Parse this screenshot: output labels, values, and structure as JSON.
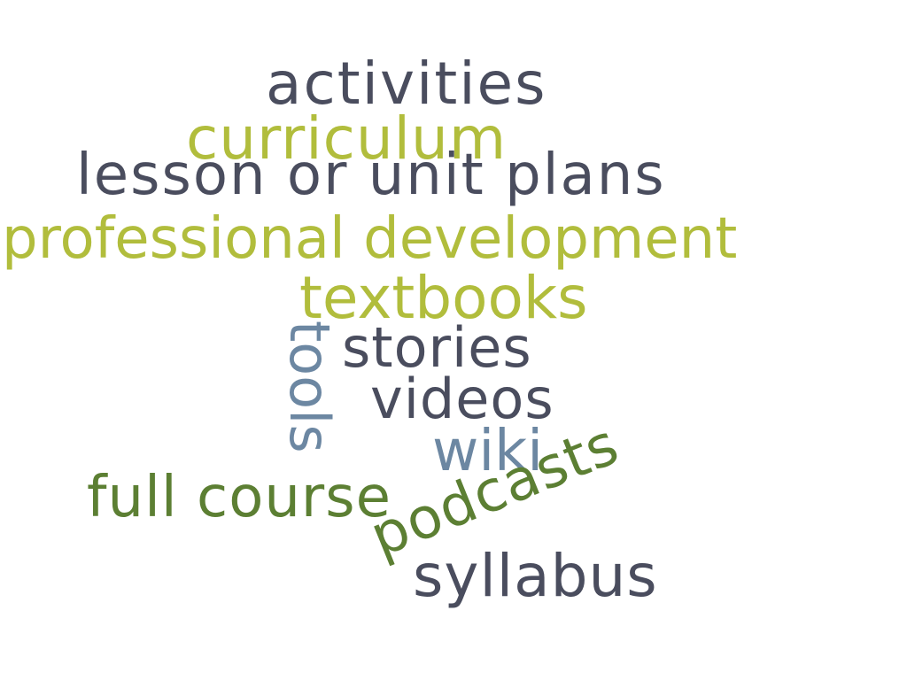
{
  "words": {
    "activities": "activities",
    "curriculum": "curriculum",
    "lesson_plans": "lesson or unit plans",
    "professional_development": "professional development",
    "textbooks": "textbooks",
    "tools": "tools",
    "stories": "stories",
    "videos": "videos",
    "wiki": "wiki",
    "full_course": "full course",
    "podcasts": "podcasts",
    "syllabus": "syllabus"
  },
  "colors": {
    "dark": "#4a4d5e",
    "lime": "#b1bd3c",
    "green": "#5c7f33",
    "blue": "#6c87a2"
  }
}
